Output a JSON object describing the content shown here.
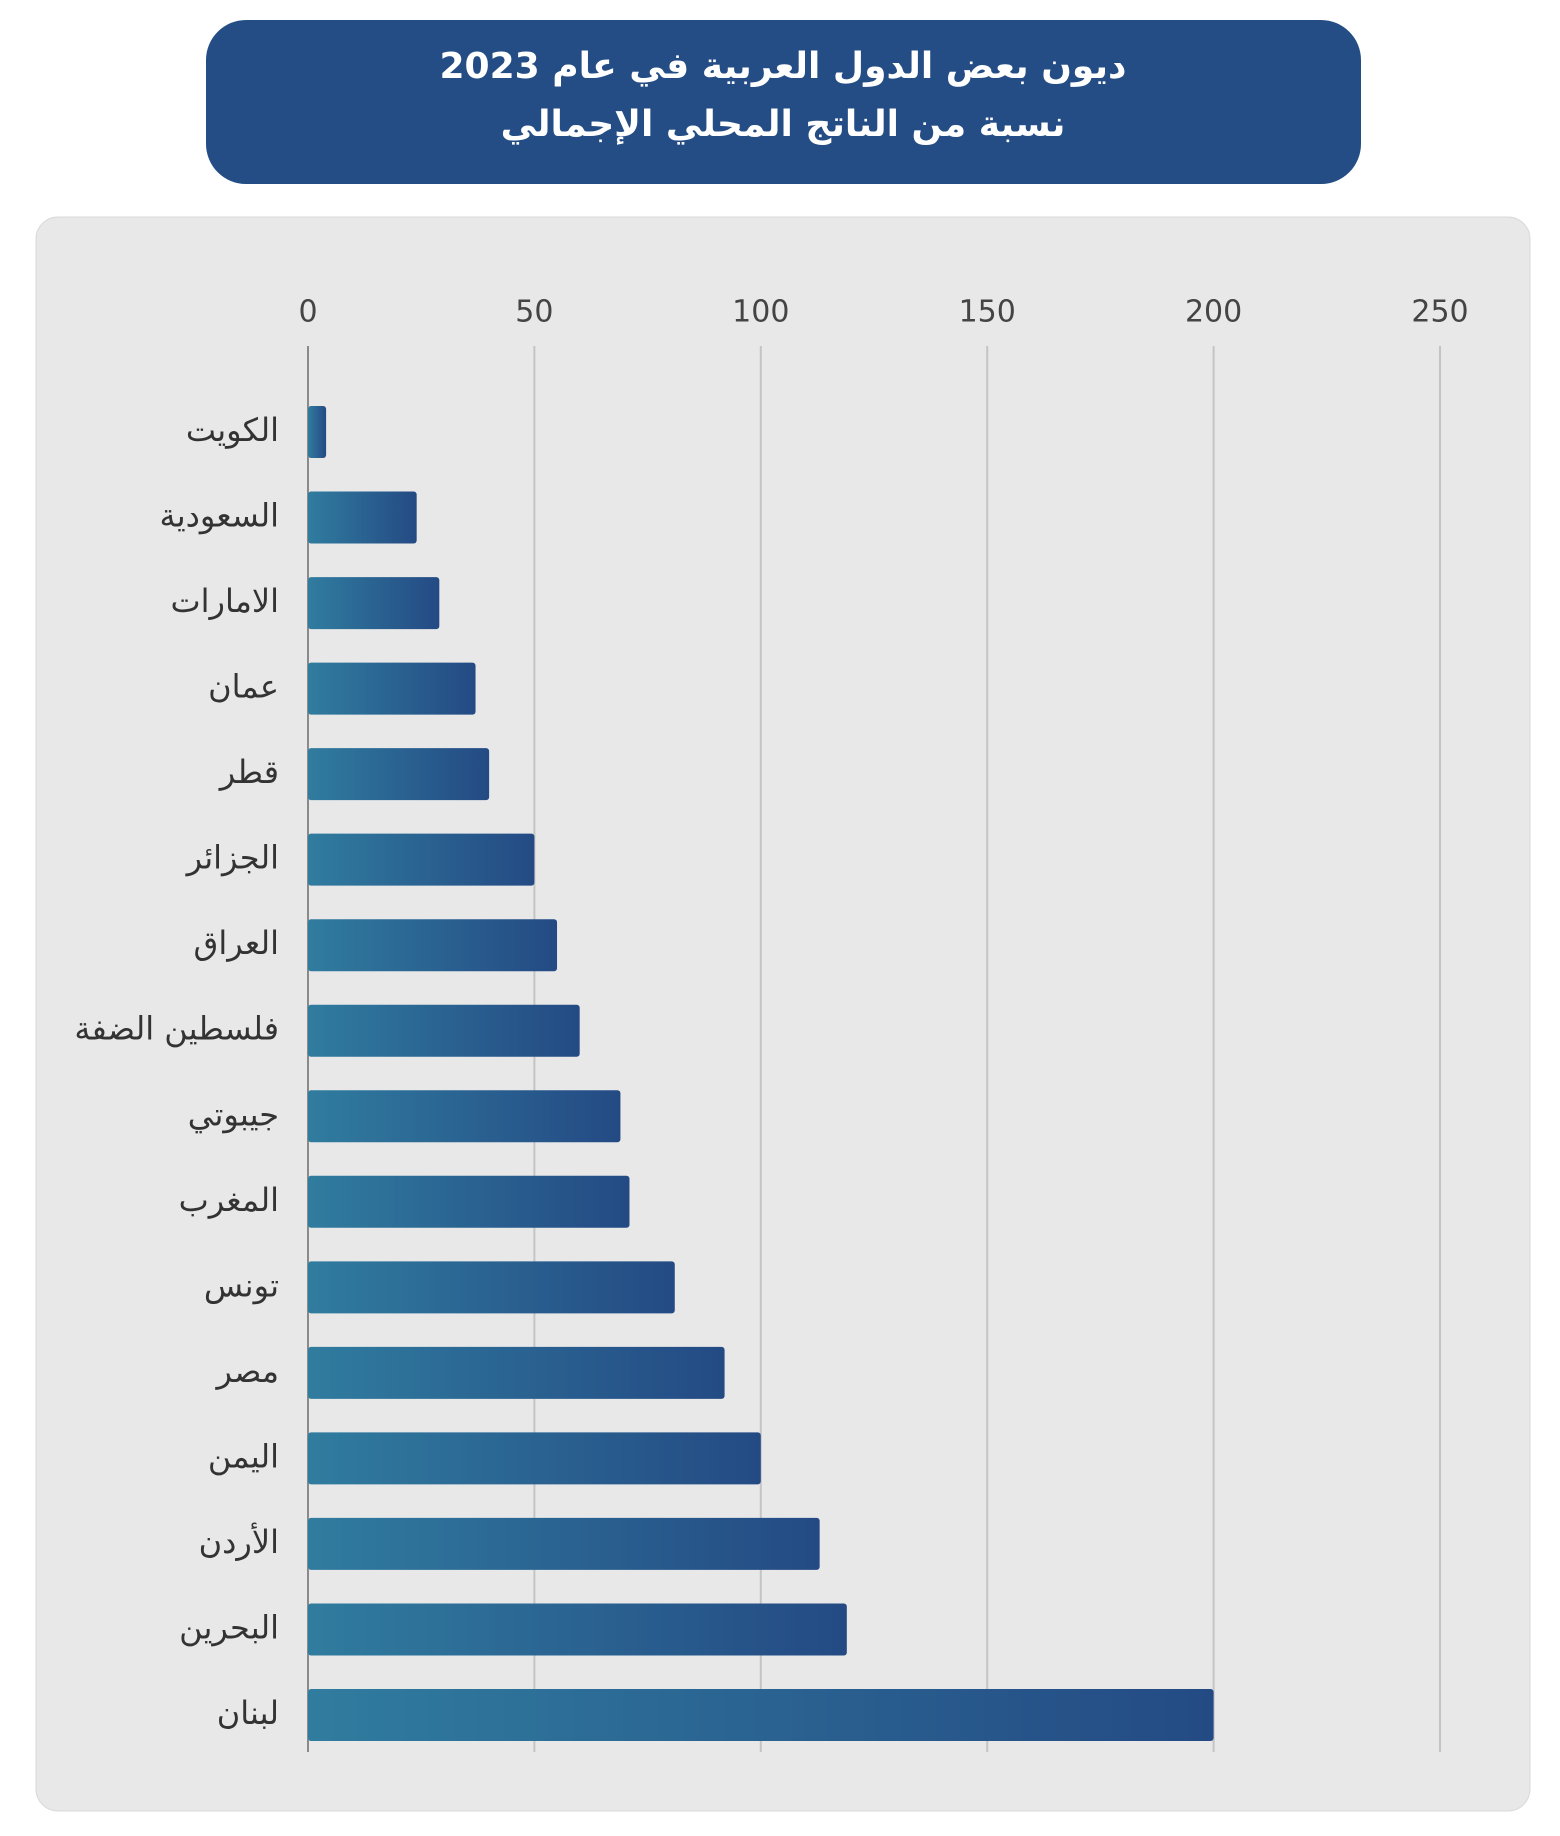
{
  "chart_data": {
    "type": "bar",
    "orientation": "horizontal",
    "title": "ديون بعض الدول العربية في عام  2023",
    "subtitle": "نسبة من الناتج المحلي الإجمالي",
    "categories": [
      "الكويت",
      "السعودية",
      "الامارات",
      "عمان",
      "قطر",
      "الجزائر",
      "العراق",
      "فلسطين الضفة",
      "جيبوتي",
      "المغرب",
      "تونس",
      "مصر",
      "اليمن",
      "الأردن",
      "البحرين",
      "لبنان"
    ],
    "values": [
      4,
      24,
      29,
      37,
      40,
      50,
      55,
      60,
      69,
      71,
      81,
      92,
      100,
      113,
      119,
      200
    ],
    "xlim": [
      0,
      250
    ],
    "xticks": [
      0,
      50,
      100,
      150,
      200,
      250
    ],
    "grid": true
  }
}
